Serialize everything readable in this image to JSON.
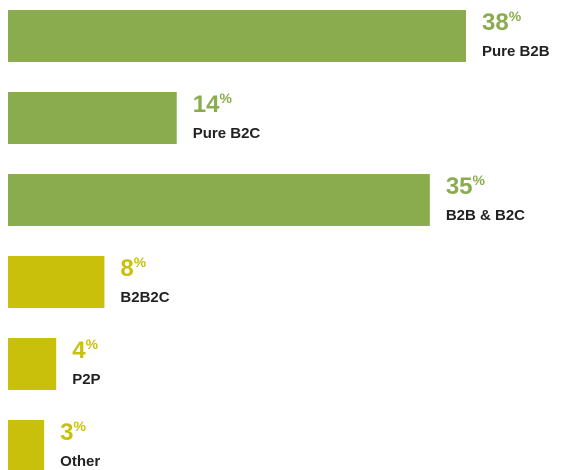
{
  "chart_data": {
    "type": "bar",
    "orientation": "horizontal",
    "categories": [
      "Pure B2B",
      "Pure B2C",
      "B2B & B2C",
      "B2B2C",
      "P2P",
      "Other"
    ],
    "values": [
      38,
      14,
      35,
      8,
      4,
      3
    ],
    "unit": "%",
    "colors": [
      "#8aac4e",
      "#8aac4e",
      "#8aac4e",
      "#c8c00a",
      "#c8c00a",
      "#c8c00a"
    ]
  }
}
